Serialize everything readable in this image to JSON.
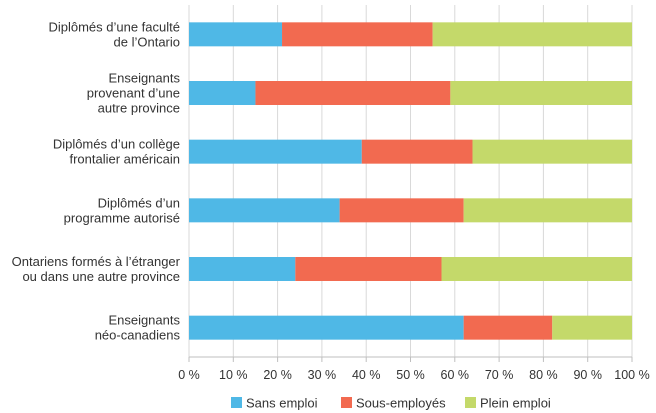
{
  "chart_data": {
    "type": "bar",
    "orientation": "horizontal",
    "stacked": true,
    "title": "",
    "xlabel": "",
    "ylabel": "",
    "xlim": [
      0,
      100
    ],
    "x_ticks": [
      "0 %",
      "10 %",
      "20 %",
      "30 %",
      "40 %",
      "50 %",
      "60 %",
      "70 %",
      "80 %",
      "90 %",
      "100 %"
    ],
    "grid": "vertical",
    "legend_position": "bottom",
    "categories": [
      [
        "Diplômés d’une faculté",
        "de l’Ontario"
      ],
      [
        "Enseignants",
        "provenant d’une",
        "autre province"
      ],
      [
        "Diplômés d’un collège",
        "frontalier américain"
      ],
      [
        "Diplômés d’un",
        "programme autorisé"
      ],
      [
        "Ontariens formés à l’étranger",
        "ou dans une autre province"
      ],
      [
        "Enseignants",
        "néo-canadiens"
      ]
    ],
    "series": [
      {
        "name": "Sans emploi",
        "color": "#4FB8E6",
        "values": [
          21,
          15,
          39,
          34,
          24,
          62
        ]
      },
      {
        "name": "Sous-employés",
        "color": "#F26A50",
        "values": [
          34,
          44,
          25,
          28,
          33,
          20
        ]
      },
      {
        "name": "Plein emploi",
        "color": "#C4D96A",
        "values": [
          45,
          41,
          36,
          38,
          43,
          18
        ]
      }
    ]
  }
}
